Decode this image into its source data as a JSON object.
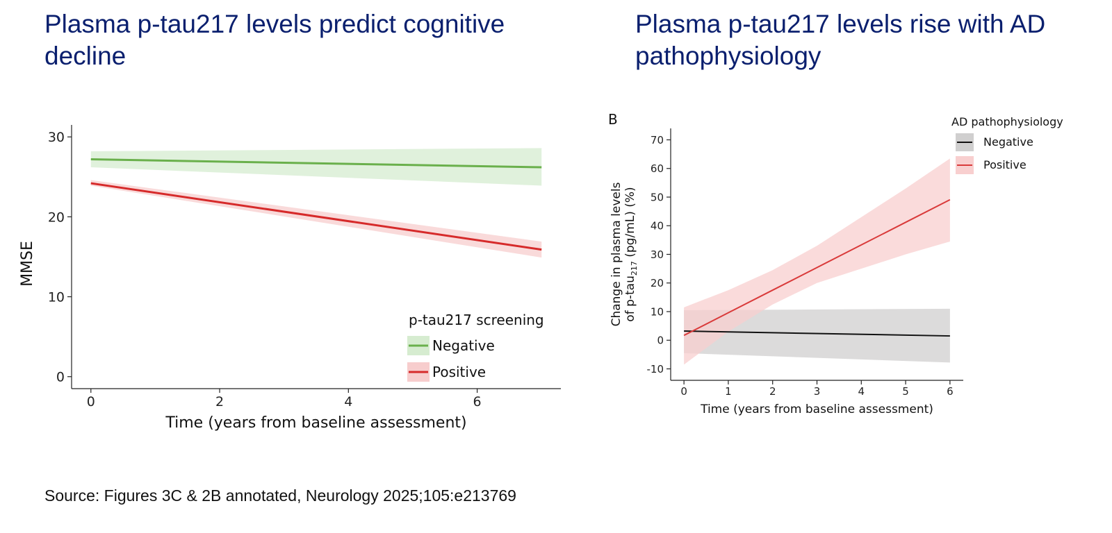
{
  "slide": {
    "title_left": "Plasma p-tau217 levels predict cognitive decline",
    "title_right": "Plasma p-tau217 levels rise with AD pathophysiology",
    "source": "Source: Figures 3C & 2B annotated, Neurology 2025;105:e213769",
    "title_color": "#0a1f6e"
  },
  "chart_data": [
    {
      "type": "line",
      "title": "Plasma p-tau217 levels predict cognitive decline",
      "xlabel": "Time (years from baseline assessment)",
      "ylabel": "MMSE",
      "xlim": [
        -0.3,
        7.3
      ],
      "ylim": [
        -1.5,
        31.5
      ],
      "xticks": [
        0,
        2,
        4,
        6
      ],
      "yticks": [
        0,
        10,
        20,
        30
      ],
      "grid": false,
      "legend": {
        "title": "p-tau217 screening",
        "position": "bottom-right"
      },
      "series": [
        {
          "name": "Negative",
          "color": "#6ab04c",
          "band_color": "#d6ecd0",
          "x": [
            0,
            7
          ],
          "y": [
            27.2,
            26.2
          ],
          "lower": [
            26.2,
            23.9
          ],
          "upper": [
            28.2,
            28.6
          ]
        },
        {
          "name": "Positive",
          "color": "#d62a2a",
          "band_color": "#f7cdcd",
          "x": [
            0,
            7
          ],
          "y": [
            24.2,
            15.9
          ],
          "lower": [
            23.9,
            14.9
          ],
          "upper": [
            24.6,
            16.9
          ]
        }
      ]
    },
    {
      "type": "line",
      "panel_label": "B",
      "title": "Plasma p-tau217 levels rise with AD pathophysiology",
      "xlabel": "Time (years from baseline assessment)",
      "ylabel_line1": "Change in plasma levels",
      "ylabel_line2_prefix": "of p-tau",
      "ylabel_line2_sub": "217",
      "ylabel_line2_suffix": " (pg/mL) (%)",
      "xlim": [
        -0.3,
        6.3
      ],
      "ylim": [
        -14,
        74
      ],
      "xticks": [
        0,
        1,
        2,
        3,
        4,
        5,
        6
      ],
      "yticks": [
        -10,
        0,
        10,
        20,
        30,
        40,
        50,
        60,
        70
      ],
      "grid": false,
      "legend": {
        "title": "AD pathophysiology",
        "position": "top-right"
      },
      "series": [
        {
          "name": "Negative",
          "color": "#111111",
          "band_color": "#d0cfcf",
          "x": [
            0,
            6
          ],
          "y": [
            3.2,
            1.5
          ],
          "lower": [
            -4.5,
            -7.8
          ],
          "upper": [
            10.5,
            11.0
          ]
        },
        {
          "name": "Positive",
          "color": "#d93a3a",
          "band_color": "#f8cfcf",
          "x": [
            0,
            1,
            2,
            3,
            4,
            5,
            6
          ],
          "y": [
            1.7,
            9.6,
            17.5,
            25.4,
            33.3,
            41.2,
            49.1
          ],
          "lower": [
            -8.5,
            3.0,
            12.5,
            20.0,
            25.0,
            30.0,
            34.5
          ],
          "upper": [
            11.5,
            17.5,
            24.5,
            33.0,
            43.0,
            53.0,
            63.5
          ]
        }
      ]
    }
  ]
}
